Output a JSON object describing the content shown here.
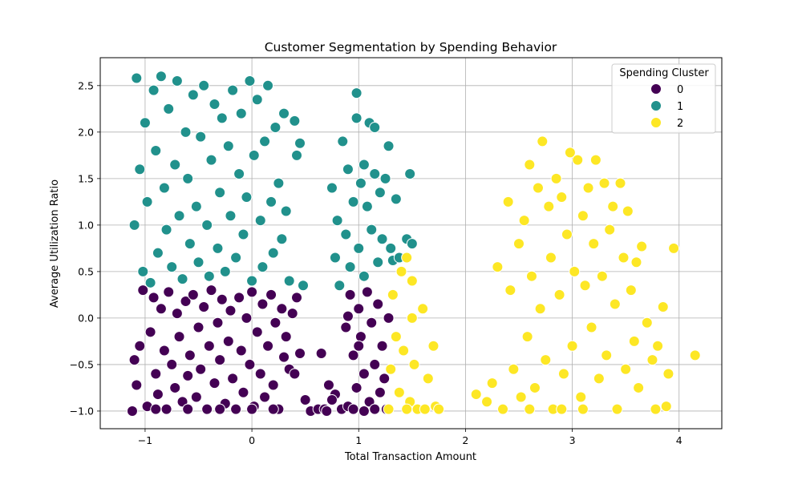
{
  "chart_data": {
    "type": "scatter",
    "title": "Customer Segmentation by Spending Behavior",
    "xlabel": "Total Transaction Amount",
    "ylabel": "Average Utilization Ratio",
    "xlim": [
      -1.42,
      4.4
    ],
    "ylim": [
      -1.19,
      2.8
    ],
    "x_ticks": [
      -1,
      0,
      1,
      2,
      3,
      4
    ],
    "x_tick_labels": [
      "−1",
      "0",
      "1",
      "2",
      "3",
      "4"
    ],
    "y_ticks": [
      -1.0,
      -0.5,
      0.0,
      0.5,
      1.0,
      1.5,
      2.0,
      2.5
    ],
    "y_tick_labels": [
      "−1.0",
      "−0.5",
      "0.0",
      "0.5",
      "1.0",
      "1.5",
      "2.0",
      "2.5"
    ],
    "grid": true,
    "legend": {
      "title": "Spending Cluster",
      "placement": "top-right",
      "entries": [
        {
          "label": "0",
          "color": "#440154"
        },
        {
          "label": "1",
          "color": "#21918c"
        },
        {
          "label": "2",
          "color": "#fde725"
        }
      ]
    },
    "series": [
      {
        "name": "0",
        "color": "#440154",
        "points": [
          [
            -1.12,
            -1.0
          ],
          [
            -1.08,
            -0.72
          ],
          [
            -1.05,
            -0.3
          ],
          [
            -1.1,
            -0.45
          ],
          [
            -1.02,
            0.3
          ],
          [
            -0.98,
            -0.95
          ],
          [
            -0.95,
            -0.15
          ],
          [
            -0.92,
            0.22
          ],
          [
            -0.9,
            -0.6
          ],
          [
            -0.88,
            -0.82
          ],
          [
            -0.85,
            0.1
          ],
          [
            -0.82,
            -0.35
          ],
          [
            -0.8,
            -0.98
          ],
          [
            -0.78,
            0.28
          ],
          [
            -0.75,
            -0.5
          ],
          [
            -0.72,
            -0.75
          ],
          [
            -0.7,
            0.05
          ],
          [
            -0.68,
            -0.2
          ],
          [
            -0.65,
            -0.9
          ],
          [
            -0.62,
            0.18
          ],
          [
            -0.6,
            -0.62
          ],
          [
            -0.58,
            -0.4
          ],
          [
            -0.55,
            0.25
          ],
          [
            -0.52,
            -0.85
          ],
          [
            -0.5,
            -0.1
          ],
          [
            -0.48,
            -0.55
          ],
          [
            -0.45,
            0.12
          ],
          [
            -0.42,
            -0.98
          ],
          [
            -0.4,
            -0.3
          ],
          [
            -0.38,
            0.3
          ],
          [
            -0.35,
            -0.7
          ],
          [
            -0.32,
            -0.05
          ],
          [
            -0.3,
            -0.45
          ],
          [
            -0.28,
            0.2
          ],
          [
            -0.25,
            -0.92
          ],
          [
            -0.22,
            -0.25
          ],
          [
            -0.2,
            0.08
          ],
          [
            -0.18,
            -0.65
          ],
          [
            -0.15,
            -0.98
          ],
          [
            -0.12,
            0.22
          ],
          [
            -0.1,
            -0.35
          ],
          [
            -0.08,
            -0.8
          ],
          [
            -0.05,
            0.0
          ],
          [
            -0.02,
            -0.5
          ],
          [
            0.0,
            0.28
          ],
          [
            0.02,
            -0.95
          ],
          [
            0.05,
            -0.15
          ],
          [
            0.08,
            -0.6
          ],
          [
            0.1,
            0.15
          ],
          [
            0.12,
            -0.85
          ],
          [
            0.15,
            -0.3
          ],
          [
            0.18,
            0.25
          ],
          [
            0.2,
            -0.72
          ],
          [
            0.22,
            -0.05
          ],
          [
            0.25,
            -0.98
          ],
          [
            0.28,
            0.1
          ],
          [
            0.3,
            -0.42
          ],
          [
            0.32,
            -0.2
          ],
          [
            0.35,
            -0.55
          ],
          [
            0.38,
            0.05
          ],
          [
            -0.9,
            -0.98
          ],
          [
            -0.6,
            -0.98
          ],
          [
            -0.3,
            -0.98
          ],
          [
            0.0,
            -0.98
          ],
          [
            0.2,
            -0.98
          ],
          [
            0.4,
            -0.6
          ],
          [
            0.42,
            0.22
          ],
          [
            0.45,
            -0.38
          ],
          [
            0.5,
            -0.88
          ],
          [
            0.55,
            -1.0
          ],
          [
            0.62,
            -0.98
          ],
          [
            0.68,
            -0.98
          ],
          [
            0.72,
            -0.72
          ],
          [
            0.78,
            -0.82
          ],
          [
            0.84,
            -0.98
          ],
          [
            0.65,
            -0.38
          ],
          [
            0.7,
            -1.0
          ],
          [
            0.75,
            -0.88
          ],
          [
            0.88,
            -0.1
          ],
          [
            0.9,
            -0.95
          ],
          [
            0.92,
            0.25
          ],
          [
            0.95,
            -0.4
          ],
          [
            0.98,
            -0.75
          ],
          [
            1.0,
            0.1
          ],
          [
            1.02,
            -0.2
          ],
          [
            1.05,
            -0.6
          ],
          [
            1.08,
            0.28
          ],
          [
            1.1,
            -0.9
          ],
          [
            1.12,
            -0.05
          ],
          [
            1.15,
            -0.5
          ],
          [
            1.18,
            0.15
          ],
          [
            1.2,
            -0.8
          ],
          [
            1.22,
            -0.3
          ],
          [
            1.24,
            -0.65
          ],
          [
            1.26,
            -0.98
          ],
          [
            1.28,
            0.0
          ],
          [
            0.95,
            -0.98
          ],
          [
            1.05,
            -1.0
          ],
          [
            1.15,
            -0.98
          ],
          [
            1.0,
            -0.3
          ],
          [
            0.9,
            0.02
          ]
        ]
      },
      {
        "name": "1",
        "color": "#21918c",
        "points": [
          [
            -1.1,
            1.0
          ],
          [
            -1.08,
            2.58
          ],
          [
            -1.05,
            1.6
          ],
          [
            -1.02,
            0.5
          ],
          [
            -1.0,
            2.1
          ],
          [
            -0.98,
            1.25
          ],
          [
            -0.95,
            0.38
          ],
          [
            -0.92,
            2.45
          ],
          [
            -0.9,
            1.8
          ],
          [
            -0.88,
            0.7
          ],
          [
            -0.85,
            2.6
          ],
          [
            -0.82,
            1.4
          ],
          [
            -0.8,
            0.95
          ],
          [
            -0.78,
            2.25
          ],
          [
            -0.75,
            0.55
          ],
          [
            -0.72,
            1.65
          ],
          [
            -0.7,
            2.55
          ],
          [
            -0.68,
            1.1
          ],
          [
            -0.65,
            0.42
          ],
          [
            -0.62,
            2.0
          ],
          [
            -0.6,
            1.5
          ],
          [
            -0.58,
            0.8
          ],
          [
            -0.55,
            2.4
          ],
          [
            -0.52,
            1.2
          ],
          [
            -0.5,
            0.6
          ],
          [
            -0.48,
            1.95
          ],
          [
            -0.45,
            2.5
          ],
          [
            -0.42,
            1.0
          ],
          [
            -0.4,
            0.45
          ],
          [
            -0.38,
            1.7
          ],
          [
            -0.35,
            2.3
          ],
          [
            -0.32,
            0.75
          ],
          [
            -0.3,
            1.35
          ],
          [
            -0.28,
            2.15
          ],
          [
            -0.25,
            0.5
          ],
          [
            -0.22,
            1.85
          ],
          [
            -0.2,
            1.1
          ],
          [
            -0.18,
            2.45
          ],
          [
            -0.15,
            0.65
          ],
          [
            -0.12,
            1.55
          ],
          [
            -0.1,
            2.2
          ],
          [
            -0.08,
            0.9
          ],
          [
            -0.05,
            1.3
          ],
          [
            -0.02,
            2.55
          ],
          [
            0.0,
            0.4
          ],
          [
            0.02,
            1.75
          ],
          [
            0.05,
            2.35
          ],
          [
            0.08,
            1.05
          ],
          [
            0.1,
            0.55
          ],
          [
            0.12,
            1.9
          ],
          [
            0.15,
            2.5
          ],
          [
            0.18,
            1.25
          ],
          [
            0.2,
            0.7
          ],
          [
            0.22,
            2.05
          ],
          [
            0.25,
            1.45
          ],
          [
            0.28,
            0.85
          ],
          [
            0.3,
            2.2
          ],
          [
            0.32,
            1.15
          ],
          [
            0.35,
            0.4
          ],
          [
            0.4,
            2.12
          ],
          [
            0.42,
            1.75
          ],
          [
            0.45,
            1.88
          ],
          [
            0.48,
            0.35
          ],
          [
            0.75,
            1.4
          ],
          [
            0.78,
            0.65
          ],
          [
            0.8,
            1.05
          ],
          [
            0.82,
            0.35
          ],
          [
            0.85,
            1.9
          ],
          [
            0.88,
            0.9
          ],
          [
            0.9,
            1.6
          ],
          [
            0.92,
            0.55
          ],
          [
            0.95,
            1.25
          ],
          [
            0.98,
            2.15
          ],
          [
            1.0,
            0.75
          ],
          [
            1.02,
            1.45
          ],
          [
            1.05,
            0.45
          ],
          [
            1.08,
            1.2
          ],
          [
            1.1,
            2.1
          ],
          [
            1.12,
            0.95
          ],
          [
            1.15,
            1.55
          ],
          [
            1.18,
            0.6
          ],
          [
            1.2,
            1.35
          ],
          [
            1.22,
            0.85
          ],
          [
            1.25,
            1.5
          ],
          [
            1.28,
            1.85
          ],
          [
            1.3,
            0.75
          ],
          [
            1.32,
            0.62
          ],
          [
            1.35,
            1.28
          ],
          [
            1.38,
            0.65
          ],
          [
            1.45,
            0.85
          ],
          [
            1.48,
            1.55
          ],
          [
            1.5,
            0.8
          ],
          [
            0.98,
            2.42
          ],
          [
            1.05,
            1.65
          ],
          [
            1.15,
            2.05
          ]
        ]
      },
      {
        "name": "2",
        "color": "#fde725",
        "points": [
          [
            1.28,
            -0.98
          ],
          [
            1.3,
            -0.55
          ],
          [
            1.32,
            0.25
          ],
          [
            1.35,
            -0.2
          ],
          [
            1.38,
            -0.8
          ],
          [
            1.4,
            0.5
          ],
          [
            1.42,
            -0.35
          ],
          [
            1.45,
            0.65
          ],
          [
            1.48,
            -0.9
          ],
          [
            1.5,
            0.4
          ],
          [
            1.52,
            -0.5
          ],
          [
            1.55,
            -0.98
          ],
          [
            1.6,
            0.1
          ],
          [
            1.65,
            -0.65
          ],
          [
            1.7,
            -0.3
          ],
          [
            1.72,
            -0.95
          ],
          [
            1.75,
            -0.98
          ],
          [
            1.5,
            0.0
          ],
          [
            1.45,
            -0.98
          ],
          [
            1.62,
            -0.98
          ],
          [
            2.1,
            -0.82
          ],
          [
            2.2,
            -0.9
          ],
          [
            2.25,
            -0.7
          ],
          [
            2.3,
            0.55
          ],
          [
            2.35,
            -0.98
          ],
          [
            2.4,
            1.25
          ],
          [
            2.42,
            0.3
          ],
          [
            2.45,
            -0.55
          ],
          [
            2.5,
            0.8
          ],
          [
            2.52,
            -0.85
          ],
          [
            2.55,
            1.05
          ],
          [
            2.58,
            -0.2
          ],
          [
            2.6,
            1.65
          ],
          [
            2.62,
            0.45
          ],
          [
            2.65,
            -0.75
          ],
          [
            2.68,
            1.4
          ],
          [
            2.7,
            0.1
          ],
          [
            2.72,
            1.9
          ],
          [
            2.75,
            -0.45
          ],
          [
            2.78,
            1.2
          ],
          [
            2.8,
            0.65
          ],
          [
            2.82,
            -0.98
          ],
          [
            2.85,
            1.5
          ],
          [
            2.88,
            0.25
          ],
          [
            2.9,
            1.3
          ],
          [
            2.92,
            -0.6
          ],
          [
            2.95,
            0.9
          ],
          [
            2.98,
            1.78
          ],
          [
            3.0,
            -0.3
          ],
          [
            3.02,
            0.5
          ],
          [
            3.05,
            1.7
          ],
          [
            3.08,
            -0.85
          ],
          [
            3.1,
            1.1
          ],
          [
            3.12,
            0.35
          ],
          [
            3.15,
            1.4
          ],
          [
            3.18,
            -0.1
          ],
          [
            3.2,
            0.8
          ],
          [
            3.22,
            1.7
          ],
          [
            3.25,
            -0.65
          ],
          [
            3.28,
            0.45
          ],
          [
            3.3,
            1.45
          ],
          [
            3.32,
            -0.4
          ],
          [
            3.35,
            0.95
          ],
          [
            3.38,
            1.2
          ],
          [
            3.4,
            0.15
          ],
          [
            3.42,
            -0.98
          ],
          [
            3.45,
            1.45
          ],
          [
            3.48,
            0.65
          ],
          [
            3.5,
            -0.55
          ],
          [
            3.52,
            1.15
          ],
          [
            3.55,
            0.3
          ],
          [
            3.58,
            -0.25
          ],
          [
            3.6,
            0.6
          ],
          [
            3.62,
            -0.75
          ],
          [
            3.65,
            0.77
          ],
          [
            3.7,
            -0.05
          ],
          [
            3.75,
            -0.45
          ],
          [
            3.8,
            -0.3
          ],
          [
            3.85,
            0.12
          ],
          [
            3.9,
            -0.6
          ],
          [
            3.95,
            0.75
          ],
          [
            4.15,
            -0.4
          ],
          [
            3.88,
            -0.95
          ],
          [
            3.78,
            -0.98
          ],
          [
            3.1,
            -0.98
          ],
          [
            2.9,
            -0.98
          ],
          [
            2.6,
            -0.98
          ]
        ]
      }
    ]
  }
}
